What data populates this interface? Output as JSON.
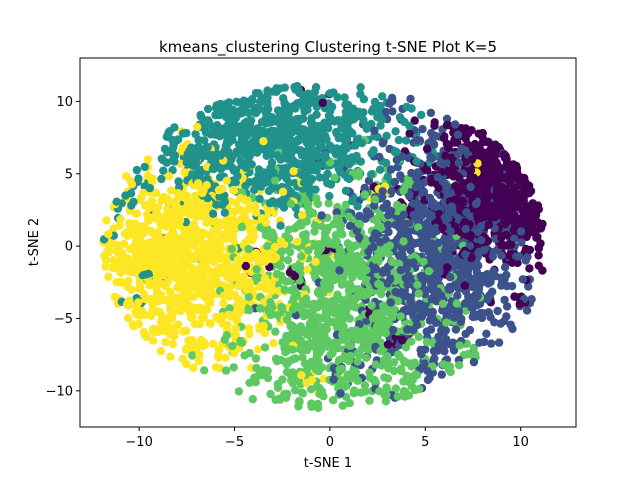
{
  "chart_data": {
    "type": "scatter",
    "title": "kmeans_clustering Clustering t-SNE Plot K=5",
    "xlabel": "t-SNE 1",
    "ylabel": "t-SNE 2",
    "xlim": [
      -13.1,
      12.9
    ],
    "ylim": [
      -12.5,
      13.0
    ],
    "xticks": [
      -10,
      -5,
      0,
      5,
      10
    ],
    "yticks": [
      -10,
      -5,
      0,
      5,
      10
    ],
    "xtick_labels": [
      "−10",
      "−5",
      "0",
      "5",
      "10"
    ],
    "ytick_labels": [
      "−10",
      "−5",
      "0",
      "5",
      "10"
    ],
    "grid": false,
    "legend": "none",
    "colormap": "viridis",
    "series": [
      {
        "cluster": 0,
        "color": "#440154",
        "region": {
          "cx": 8.8,
          "cy": 4.0,
          "sx": 1.8,
          "sy": 2.4
        },
        "points_approx": 700,
        "sample_points": [
          [
            7.6,
            9.5
          ],
          [
            6.5,
            7.6
          ],
          [
            9.4,
            6.8
          ],
          [
            8.5,
            4.9
          ],
          [
            10.6,
            4.2
          ],
          [
            9.8,
            0.9
          ],
          [
            11.1,
            -1.5
          ],
          [
            10.0,
            -3.6
          ],
          [
            1.8,
            -5.0
          ],
          [
            3.7,
            -6.4
          ],
          [
            -0.3,
            -0.2
          ],
          [
            -1.8,
            -2.2
          ],
          [
            2.5,
            4.0
          ],
          [
            4.3,
            2.5
          ],
          [
            -4.2,
            -1.2
          ],
          [
            -1.0,
            10.7
          ]
        ]
      },
      {
        "cluster": 1,
        "color": "#3b528b",
        "region": {
          "cx": 5.6,
          "cy": -0.6,
          "sx": 2.3,
          "sy": 4.2
        },
        "points_approx": 900,
        "sample_points": [
          [
            3.3,
            9.5
          ],
          [
            5.2,
            7.3
          ],
          [
            4.4,
            4.2
          ],
          [
            6.3,
            2.4
          ],
          [
            5.9,
            -0.9
          ],
          [
            7.3,
            -2.9
          ],
          [
            8.9,
            -5.3
          ],
          [
            5.0,
            -8.7
          ],
          [
            9.4,
            -7.2
          ],
          [
            10.2,
            -4.3
          ],
          [
            2.1,
            -7.4
          ],
          [
            -0.4,
            5.8
          ],
          [
            0.4,
            -9.0
          ],
          [
            3.3,
            -10.6
          ],
          [
            7.8,
            -8.6
          ]
        ]
      },
      {
        "cluster": 2,
        "color": "#21918c",
        "region": {
          "cx": -3.2,
          "cy": 7.3,
          "sx": 3.3,
          "sy": 2.3
        },
        "points_approx": 800,
        "sample_points": [
          [
            -6.0,
            9.9
          ],
          [
            -3.4,
            10.8
          ],
          [
            -1.6,
            9.7
          ],
          [
            -5.2,
            11.7
          ],
          [
            -2.6,
            8.0
          ],
          [
            -8.7,
            8.0
          ],
          [
            -6.6,
            6.5
          ],
          [
            0.5,
            7.0
          ],
          [
            2.3,
            9.3
          ],
          [
            -10.0,
            4.2
          ],
          [
            -11.0,
            2.7
          ],
          [
            -9.6,
            -2.1
          ],
          [
            -10.3,
            -4.0
          ],
          [
            -2.2,
            3.3
          ],
          [
            -11.8,
            0.3
          ]
        ]
      },
      {
        "cluster": 3,
        "color": "#5ec962",
        "region": {
          "cx": 0.7,
          "cy": -4.0,
          "sx": 2.7,
          "sy": 3.8
        },
        "points_approx": 900,
        "sample_points": [
          [
            -1.2,
            3.2
          ],
          [
            0.3,
            1.8
          ],
          [
            -0.5,
            -1.4
          ],
          [
            1.0,
            -3.2
          ],
          [
            2.5,
            -5.4
          ],
          [
            -1.8,
            -6.7
          ],
          [
            0.8,
            -9.4
          ],
          [
            3.8,
            -10.1
          ],
          [
            5.9,
            -8.5
          ],
          [
            -3.3,
            -8.9
          ],
          [
            -4.7,
            -6.7
          ],
          [
            -2.2,
            -10.3
          ],
          [
            7.4,
            -7.5
          ],
          [
            4.3,
            4.5
          ],
          [
            -3.0,
            0.7
          ]
        ]
      },
      {
        "cluster": 4,
        "color": "#fde725",
        "region": {
          "cx": -7.4,
          "cy": -1.0,
          "sx": 2.6,
          "sy": 3.1
        },
        "points_approx": 900,
        "sample_points": [
          [
            -11.0,
            -0.6
          ],
          [
            -10.0,
            0.9
          ],
          [
            -9.1,
            -1.9
          ],
          [
            -8.3,
            2.1
          ],
          [
            -6.6,
            4.2
          ],
          [
            -5.4,
            1.6
          ],
          [
            -7.0,
            -3.8
          ],
          [
            -8.6,
            -5.6
          ],
          [
            -10.4,
            -6.6
          ],
          [
            -6.2,
            -7.3
          ],
          [
            -4.9,
            -4.4
          ],
          [
            -3.6,
            -1.2
          ],
          [
            -1.7,
            4.8
          ],
          [
            7.6,
            5.5
          ],
          [
            -0.9,
            -9.3
          ],
          [
            2.6,
            3.8
          ]
        ]
      }
    ]
  }
}
